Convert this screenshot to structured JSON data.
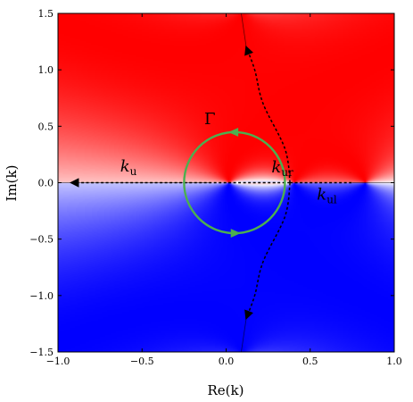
{
  "chart_data": {
    "type": "heatmap",
    "title": "",
    "xlabel": "Re(k)",
    "ylabel": "Im(k)",
    "xlim": [
      -1.0,
      1.0
    ],
    "ylim": [
      -1.5,
      1.5
    ],
    "x_ticks": [
      -1.0,
      -0.5,
      0.0,
      0.5,
      1.0
    ],
    "y_ticks": [
      -1.5,
      -1.0,
      -0.5,
      0.0,
      0.5,
      1.0,
      1.5
    ],
    "x_tick_labels": [
      "−1.0",
      "−0.5",
      "0.0",
      "0.5",
      "1.0"
    ],
    "y_tick_labels": [
      "−1.5",
      "−1.0",
      "−0.5",
      "0.0",
      "0.5",
      "1.0",
      "1.5"
    ],
    "grid": false,
    "colormap": {
      "negative": "#0000ff",
      "zero": "#ffffff",
      "positive": "#ff0000"
    },
    "branch_cuts": [
      {
        "from": [
          -1.0,
          0.0
        ],
        "to": [
          -0.1,
          0.0
        ],
        "color": "#000000"
      },
      {
        "from": [
          0.75,
          0.0
        ],
        "to": [
          1.0,
          0.0
        ],
        "color": "#000000"
      },
      {
        "from": [
          0.09,
          1.5
        ],
        "to": [
          0.12,
          1.2
        ],
        "color": "#000000"
      },
      {
        "from": [
          0.09,
          -1.5
        ],
        "to": [
          0.12,
          -1.2
        ],
        "color": "#000000"
      }
    ],
    "contour": {
      "name": "Γ",
      "center": [
        0.05,
        0.0
      ],
      "radius": 0.3,
      "color": "#4caf50",
      "direction": "counterclockwise"
    },
    "paths": [
      {
        "name": "k_u",
        "label_main": "k",
        "label_sub": "u",
        "label_at": [
          -0.63,
          0.1
        ],
        "points": [
          [
            0.38,
            0.0
          ],
          [
            0.0,
            0.0
          ],
          [
            -0.5,
            0.0
          ],
          [
            -0.92,
            0.0
          ]
        ]
      },
      {
        "name": "k_ur",
        "label_main": "k",
        "label_sub": "ur",
        "label_at": [
          0.27,
          0.09
        ],
        "points": [
          [
            0.38,
            0.0
          ],
          [
            0.35,
            0.3
          ],
          [
            0.22,
            0.7
          ],
          [
            0.17,
            1.0
          ],
          [
            0.12,
            1.2
          ]
        ]
      },
      {
        "name": "k_ul",
        "label_main": "k",
        "label_sub": "ul",
        "label_at": [
          0.54,
          -0.15
        ],
        "points": [
          [
            0.38,
            0.0
          ],
          [
            0.35,
            -0.3
          ],
          [
            0.22,
            -0.7
          ],
          [
            0.17,
            -1.0
          ],
          [
            0.12,
            -1.2
          ]
        ]
      },
      {
        "name": "k_right",
        "label_main": "",
        "label_sub": "",
        "points": [
          [
            0.38,
            0.0
          ],
          [
            0.55,
            0.0
          ],
          [
            0.75,
            0.0
          ]
        ]
      }
    ],
    "annotations": [
      {
        "text": "Γ",
        "at": [
          -0.13,
          0.52
        ]
      }
    ]
  }
}
